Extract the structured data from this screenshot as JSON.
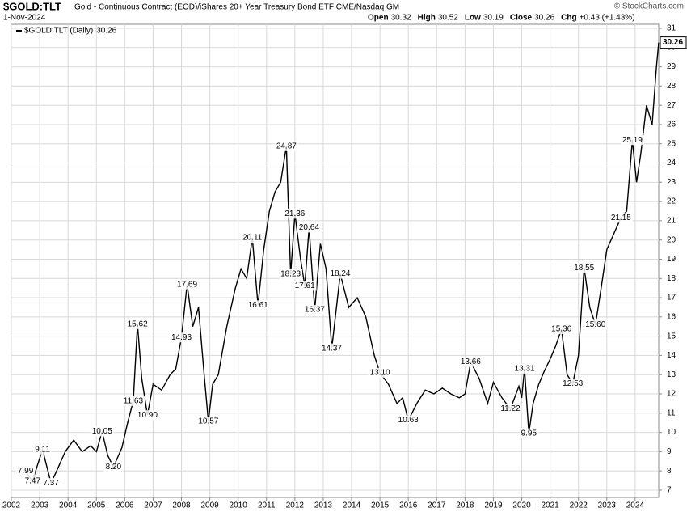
{
  "chart_data": {
    "type": "line",
    "title": "$GOLD:TLT",
    "subtitle": "Gold - Continuous Contract (EOD)/iShares 20+ Year Treasury Bond ETF  CME/Nasdaq GM",
    "source": "© StockCharts.com",
    "date": "1-Nov-2024",
    "quote": [
      {
        "label": "Open",
        "value": 30.32
      },
      {
        "label": "High",
        "value": 30.52
      },
      {
        "label": "Low",
        "value": 30.19
      },
      {
        "label": "Close",
        "value": 30.26
      },
      {
        "label": "Chg",
        "value": "+0.43 (+1.43%)"
      }
    ],
    "x": [
      2002.5,
      2002.75,
      2002.9,
      2003.1,
      2003.4,
      2003.6,
      2003.9,
      2004.2,
      2004.5,
      2004.8,
      2005.0,
      2005.2,
      2005.4,
      2005.6,
      2005.9,
      2006.1,
      2006.3,
      2006.45,
      2006.6,
      2006.8,
      2007.0,
      2007.3,
      2007.6,
      2007.8,
      2008.0,
      2008.2,
      2008.4,
      2008.6,
      2008.8,
      2008.95,
      2009.1,
      2009.3,
      2009.6,
      2009.9,
      2010.1,
      2010.3,
      2010.5,
      2010.7,
      2010.9,
      2011.1,
      2011.3,
      2011.5,
      2011.7,
      2011.85,
      2012.0,
      2012.2,
      2012.35,
      2012.5,
      2012.7,
      2012.9,
      2013.1,
      2013.3,
      2013.6,
      2013.9,
      2014.2,
      2014.5,
      2014.8,
      2015.0,
      2015.3,
      2015.6,
      2015.8,
      2016.0,
      2016.3,
      2016.6,
      2016.9,
      2017.2,
      2017.5,
      2017.8,
      2018.0,
      2018.2,
      2018.5,
      2018.8,
      2019.0,
      2019.3,
      2019.6,
      2019.9,
      2020.0,
      2020.1,
      2020.25,
      2020.4,
      2020.6,
      2020.8,
      2021.0,
      2021.2,
      2021.4,
      2021.6,
      2021.8,
      2022.0,
      2022.2,
      2022.4,
      2022.6,
      2022.8,
      2023.0,
      2023.3,
      2023.5,
      2023.7,
      2023.9,
      2024.05,
      2024.2,
      2024.4,
      2024.6,
      2024.75,
      2024.83
    ],
    "series": [
      {
        "name": "$GOLD:TLT (Daily)",
        "color": "#000000",
        "values": [
          7.99,
          7.47,
          8.2,
          9.11,
          7.37,
          8.0,
          9.0,
          9.6,
          9.0,
          9.3,
          9.0,
          10.05,
          8.8,
          8.2,
          9.2,
          10.5,
          11.63,
          15.62,
          12.8,
          10.9,
          12.5,
          12.2,
          13.0,
          13.3,
          14.93,
          17.69,
          15.5,
          16.5,
          13.0,
          10.57,
          12.5,
          13.0,
          15.5,
          17.5,
          18.5,
          18.0,
          20.11,
          16.61,
          19.5,
          21.5,
          22.5,
          23.0,
          24.87,
          18.23,
          21.36,
          19.0,
          17.61,
          20.64,
          16.37,
          19.8,
          18.5,
          14.37,
          18.24,
          16.5,
          17.0,
          16.0,
          14.0,
          13.1,
          12.5,
          11.5,
          11.8,
          10.63,
          11.5,
          12.2,
          12.0,
          12.3,
          12.0,
          11.8,
          12.0,
          13.66,
          12.8,
          11.5,
          12.6,
          11.8,
          11.22,
          12.4,
          11.8,
          13.31,
          9.95,
          11.5,
          12.5,
          13.2,
          13.8,
          14.5,
          15.36,
          13.0,
          12.53,
          14.0,
          18.55,
          16.5,
          15.6,
          17.5,
          19.5,
          20.5,
          21.15,
          21.5,
          25.19,
          23.0,
          24.5,
          27.0,
          26.0,
          29.0,
          30.26
        ]
      }
    ],
    "annotations": [
      {
        "x": 2002.5,
        "y": 7.99,
        "label": "7.99"
      },
      {
        "x": 2002.75,
        "y": 7.47,
        "label": "7.47"
      },
      {
        "x": 2003.1,
        "y": 9.11,
        "label": "9.11"
      },
      {
        "x": 2003.4,
        "y": 7.37,
        "label": "7.37"
      },
      {
        "x": 2005.2,
        "y": 10.05,
        "label": "10.05"
      },
      {
        "x": 2005.6,
        "y": 8.2,
        "label": "8.20"
      },
      {
        "x": 2006.3,
        "y": 11.63,
        "label": "11.63"
      },
      {
        "x": 2006.45,
        "y": 15.62,
        "label": "15.62"
      },
      {
        "x": 2006.8,
        "y": 10.9,
        "label": "10.90"
      },
      {
        "x": 2008.0,
        "y": 14.93,
        "label": "14.93"
      },
      {
        "x": 2008.2,
        "y": 17.69,
        "label": "17.69"
      },
      {
        "x": 2008.95,
        "y": 10.57,
        "label": "10.57"
      },
      {
        "x": 2010.5,
        "y": 20.11,
        "label": "20.11"
      },
      {
        "x": 2010.7,
        "y": 16.61,
        "label": "16.61"
      },
      {
        "x": 2011.7,
        "y": 24.87,
        "label": "24.87"
      },
      {
        "x": 2011.85,
        "y": 18.23,
        "label": "18.23"
      },
      {
        "x": 2012.0,
        "y": 21.36,
        "label": "21.36"
      },
      {
        "x": 2012.35,
        "y": 17.61,
        "label": "17.61"
      },
      {
        "x": 2012.5,
        "y": 20.64,
        "label": "20.64"
      },
      {
        "x": 2012.7,
        "y": 16.37,
        "label": "16.37"
      },
      {
        "x": 2013.3,
        "y": 14.37,
        "label": "14.37"
      },
      {
        "x": 2013.6,
        "y": 18.24,
        "label": "18.24"
      },
      {
        "x": 2015.0,
        "y": 13.1,
        "label": "13.10"
      },
      {
        "x": 2016.0,
        "y": 10.63,
        "label": "10.63"
      },
      {
        "x": 2018.2,
        "y": 13.66,
        "label": "13.66"
      },
      {
        "x": 2019.6,
        "y": 11.22,
        "label": "11.22"
      },
      {
        "x": 2020.1,
        "y": 13.31,
        "label": "13.31"
      },
      {
        "x": 2020.25,
        "y": 9.95,
        "label": "9.95"
      },
      {
        "x": 2021.4,
        "y": 15.36,
        "label": "15.36"
      },
      {
        "x": 2021.8,
        "y": 12.53,
        "label": "12.53"
      },
      {
        "x": 2022.2,
        "y": 18.55,
        "label": "18.55"
      },
      {
        "x": 2022.6,
        "y": 15.6,
        "label": "15.60"
      },
      {
        "x": 2023.5,
        "y": 21.15,
        "label": "21.15"
      },
      {
        "x": 2023.9,
        "y": 25.19,
        "label": "25.19"
      }
    ],
    "xlim": [
      2002,
      2024.83
    ],
    "xticks": [
      2002,
      2003,
      2004,
      2005,
      2006,
      2007,
      2008,
      2009,
      2010,
      2011,
      2012,
      2013,
      2014,
      2015,
      2016,
      2017,
      2018,
      2019,
      2020,
      2021,
      2022,
      2023,
      2024
    ],
    "ylim": [
      6.62,
      31.21
    ],
    "yticks": [
      7,
      8,
      9,
      10,
      11,
      12,
      13,
      14,
      15,
      16,
      17,
      18,
      19,
      20,
      21,
      22,
      23,
      24,
      25,
      26,
      27,
      28,
      29,
      30,
      31
    ],
    "grid": true
  }
}
